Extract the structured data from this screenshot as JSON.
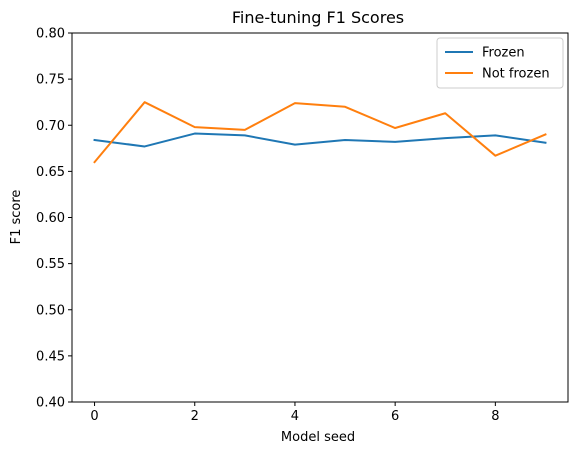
{
  "chart_data": {
    "type": "line",
    "title": "Fine-tuning F1 Scores",
    "xlabel": "Model seed",
    "ylabel": "F1 score",
    "x": [
      0,
      1,
      2,
      3,
      4,
      5,
      6,
      7,
      8,
      9
    ],
    "xlim": [
      -0.45,
      9.45
    ],
    "ylim": [
      0.4,
      0.8
    ],
    "xticks": [
      0,
      2,
      4,
      6,
      8
    ],
    "xtick_labels": [
      "0",
      "2",
      "4",
      "6",
      "8"
    ],
    "yticks": [
      0.4,
      0.45,
      0.5,
      0.55,
      0.6,
      0.65,
      0.7,
      0.75,
      0.8
    ],
    "ytick_labels": [
      "0.40",
      "0.45",
      "0.50",
      "0.55",
      "0.60",
      "0.65",
      "0.70",
      "0.75",
      "0.80"
    ],
    "grid": false,
    "legend_position": "top-right",
    "series": [
      {
        "name": "Frozen",
        "color": "#1f77b4",
        "values": [
          0.684,
          0.677,
          0.691,
          0.689,
          0.679,
          0.684,
          0.682,
          0.686,
          0.689,
          0.681
        ]
      },
      {
        "name": "Not frozen",
        "color": "#ff7f0e",
        "values": [
          0.66,
          0.725,
          0.698,
          0.695,
          0.724,
          0.72,
          0.697,
          0.713,
          0.667,
          0.69
        ]
      }
    ]
  }
}
